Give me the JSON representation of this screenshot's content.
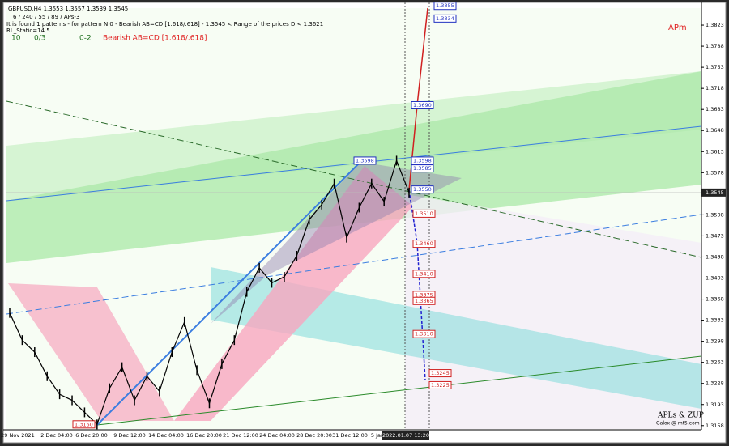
{
  "header": {
    "symbol_line": "GBPUSD,H4  1.3553 1.3557 1.3539 1.3545",
    "settings_line": "6 / 240 / 55 / 89 / APs-3",
    "pattern_line": "It is found 1 patterns  -  for pattern N 0 - Bearish AB=CD [1.618/.618]  - 1.3545 < Range of the prices D < 1.3621",
    "static_line": "RL_Static=14.5",
    "counter_a": "10",
    "counter_b": "0/3",
    "counter_c": "0-2",
    "pattern_name": "Bearish AB=CD [1.618/.618]"
  },
  "tag_apm": "APm",
  "footer": {
    "brand": "APLs & ZUP",
    "site": "Galox @ mt5.com"
  },
  "price_axis": {
    "range": [
      1.3151,
      1.3858
    ],
    "ticks": [
      1.3823,
      1.3788,
      1.3753,
      1.3718,
      1.3683,
      1.3648,
      1.3613,
      1.3578,
      1.3508,
      1.3473,
      1.3438,
      1.3403,
      1.3368,
      1.3333,
      1.3298,
      1.3263,
      1.3228,
      1.3193,
      1.3158
    ],
    "current": 1.3545
  },
  "time_axis": {
    "labels": [
      "29 Nov 2021",
      "2 Dec 04:00",
      "6 Dec 20:00",
      "9 Dec 12:00",
      "14 Dec 04:00",
      "16 Dec 20:00",
      "21 Dec 12:00",
      "24 Dec 04:00",
      "28 Dec 20:00",
      "31 Dec 12:00",
      "5 Jan"
    ],
    "current": "2022.01.07 13:20"
  },
  "price_path": [
    1.3345,
    1.33,
    1.328,
    1.324,
    1.321,
    1.32,
    1.318,
    1.316,
    1.322,
    1.3255,
    1.32,
    1.324,
    1.3215,
    1.328,
    1.333,
    1.325,
    1.3195,
    1.326,
    1.33,
    1.338,
    1.342,
    1.3395,
    1.3405,
    1.344,
    1.35,
    1.3525,
    1.356,
    1.347,
    1.352,
    1.356,
    1.353,
    1.3598,
    1.3545
  ],
  "levels_left": [
    {
      "value": 1.3598,
      "label": "1.3598"
    },
    {
      "value": 1.316,
      "label": "1.3160"
    }
  ],
  "levels_blue": [
    {
      "value": 1.3855,
      "label": "1.3855"
    },
    {
      "value": 1.3834,
      "label": "1.3834"
    },
    {
      "value": 1.369,
      "label": "1.3690"
    },
    {
      "value": 1.3598,
      "label": "1.3598"
    },
    {
      "value": 1.3585,
      "label": "1.3585"
    },
    {
      "value": 1.355,
      "label": "1.3550"
    }
  ],
  "levels_red": [
    {
      "value": 1.351,
      "label": "1.3510"
    },
    {
      "value": 1.346,
      "label": "1.3460"
    },
    {
      "value": 1.341,
      "label": "1.3410"
    },
    {
      "value": 1.3375,
      "label": "1.3375"
    },
    {
      "value": 1.3365,
      "label": "1.3365"
    },
    {
      "value": 1.331,
      "label": "1.3310"
    },
    {
      "value": 1.3245,
      "label": "1.3245"
    },
    {
      "value": 1.3225,
      "label": "1.3225"
    }
  ]
}
